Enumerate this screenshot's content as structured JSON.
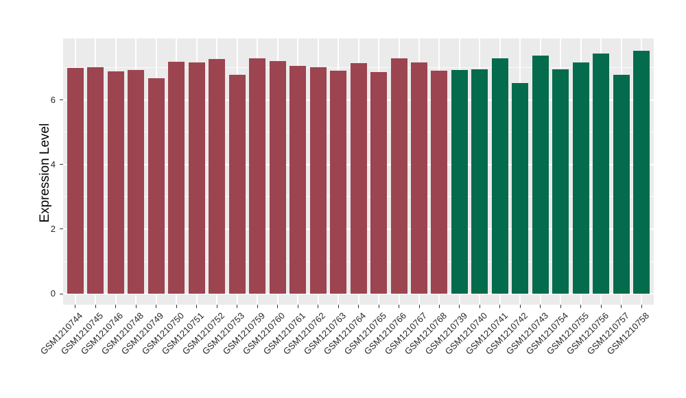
{
  "chart": {
    "title": "",
    "colors": {
      "panel_background": "#EBEBEB",
      "grid": "#FFFFFF",
      "axis_text": "#262626",
      "group1_bar": "#9C4450",
      "group2_bar": "#046B4C"
    }
  },
  "chart_data": {
    "type": "bar",
    "title": "",
    "xlabel": "",
    "ylabel": "Expression Level",
    "ylim": [
      0,
      7.9
    ],
    "yticks": [
      0,
      2,
      4,
      6
    ],
    "minor_gridlines": [
      1,
      3,
      5,
      7
    ],
    "grid": true,
    "legend": false,
    "x_label_rotation_deg": 45,
    "bars": [
      {
        "label": "GSM1210744",
        "value": 7.0,
        "color": "#9C4450"
      },
      {
        "label": "GSM1210745",
        "value": 7.01,
        "color": "#9C4450"
      },
      {
        "label": "GSM1210746",
        "value": 6.9,
        "color": "#9C4450"
      },
      {
        "label": "GSM1210748",
        "value": 6.93,
        "color": "#9C4450"
      },
      {
        "label": "GSM1210749",
        "value": 6.67,
        "color": "#9C4450"
      },
      {
        "label": "GSM1210750",
        "value": 7.18,
        "color": "#9C4450"
      },
      {
        "label": "GSM1210751",
        "value": 7.16,
        "color": "#9C4450"
      },
      {
        "label": "GSM1210752",
        "value": 7.27,
        "color": "#9C4450"
      },
      {
        "label": "GSM1210753",
        "value": 6.78,
        "color": "#9C4450"
      },
      {
        "label": "GSM1210759",
        "value": 7.29,
        "color": "#9C4450"
      },
      {
        "label": "GSM1210760",
        "value": 7.21,
        "color": "#9C4450"
      },
      {
        "label": "GSM1210761",
        "value": 7.05,
        "color": "#9C4450"
      },
      {
        "label": "GSM1210762",
        "value": 7.02,
        "color": "#9C4450"
      },
      {
        "label": "GSM1210763",
        "value": 6.92,
        "color": "#9C4450"
      },
      {
        "label": "GSM1210764",
        "value": 7.15,
        "color": "#9C4450"
      },
      {
        "label": "GSM1210765",
        "value": 6.87,
        "color": "#9C4450"
      },
      {
        "label": "GSM1210766",
        "value": 7.29,
        "color": "#9C4450"
      },
      {
        "label": "GSM1210767",
        "value": 7.17,
        "color": "#9C4450"
      },
      {
        "label": "GSM1210768",
        "value": 6.91,
        "color": "#9C4450"
      },
      {
        "label": "GSM1210739",
        "value": 6.93,
        "color": "#046B4C"
      },
      {
        "label": "GSM1210740",
        "value": 6.96,
        "color": "#046B4C"
      },
      {
        "label": "GSM1210741",
        "value": 7.29,
        "color": "#046B4C"
      },
      {
        "label": "GSM1210742",
        "value": 6.53,
        "color": "#046B4C"
      },
      {
        "label": "GSM1210743",
        "value": 7.38,
        "color": "#046B4C"
      },
      {
        "label": "GSM1210754",
        "value": 6.95,
        "color": "#046B4C"
      },
      {
        "label": "GSM1210755",
        "value": 7.16,
        "color": "#046B4C"
      },
      {
        "label": "GSM1210756",
        "value": 7.44,
        "color": "#046B4C"
      },
      {
        "label": "GSM1210757",
        "value": 6.78,
        "color": "#046B4C"
      },
      {
        "label": "GSM1210758",
        "value": 7.53,
        "color": "#046B4C"
      }
    ]
  }
}
